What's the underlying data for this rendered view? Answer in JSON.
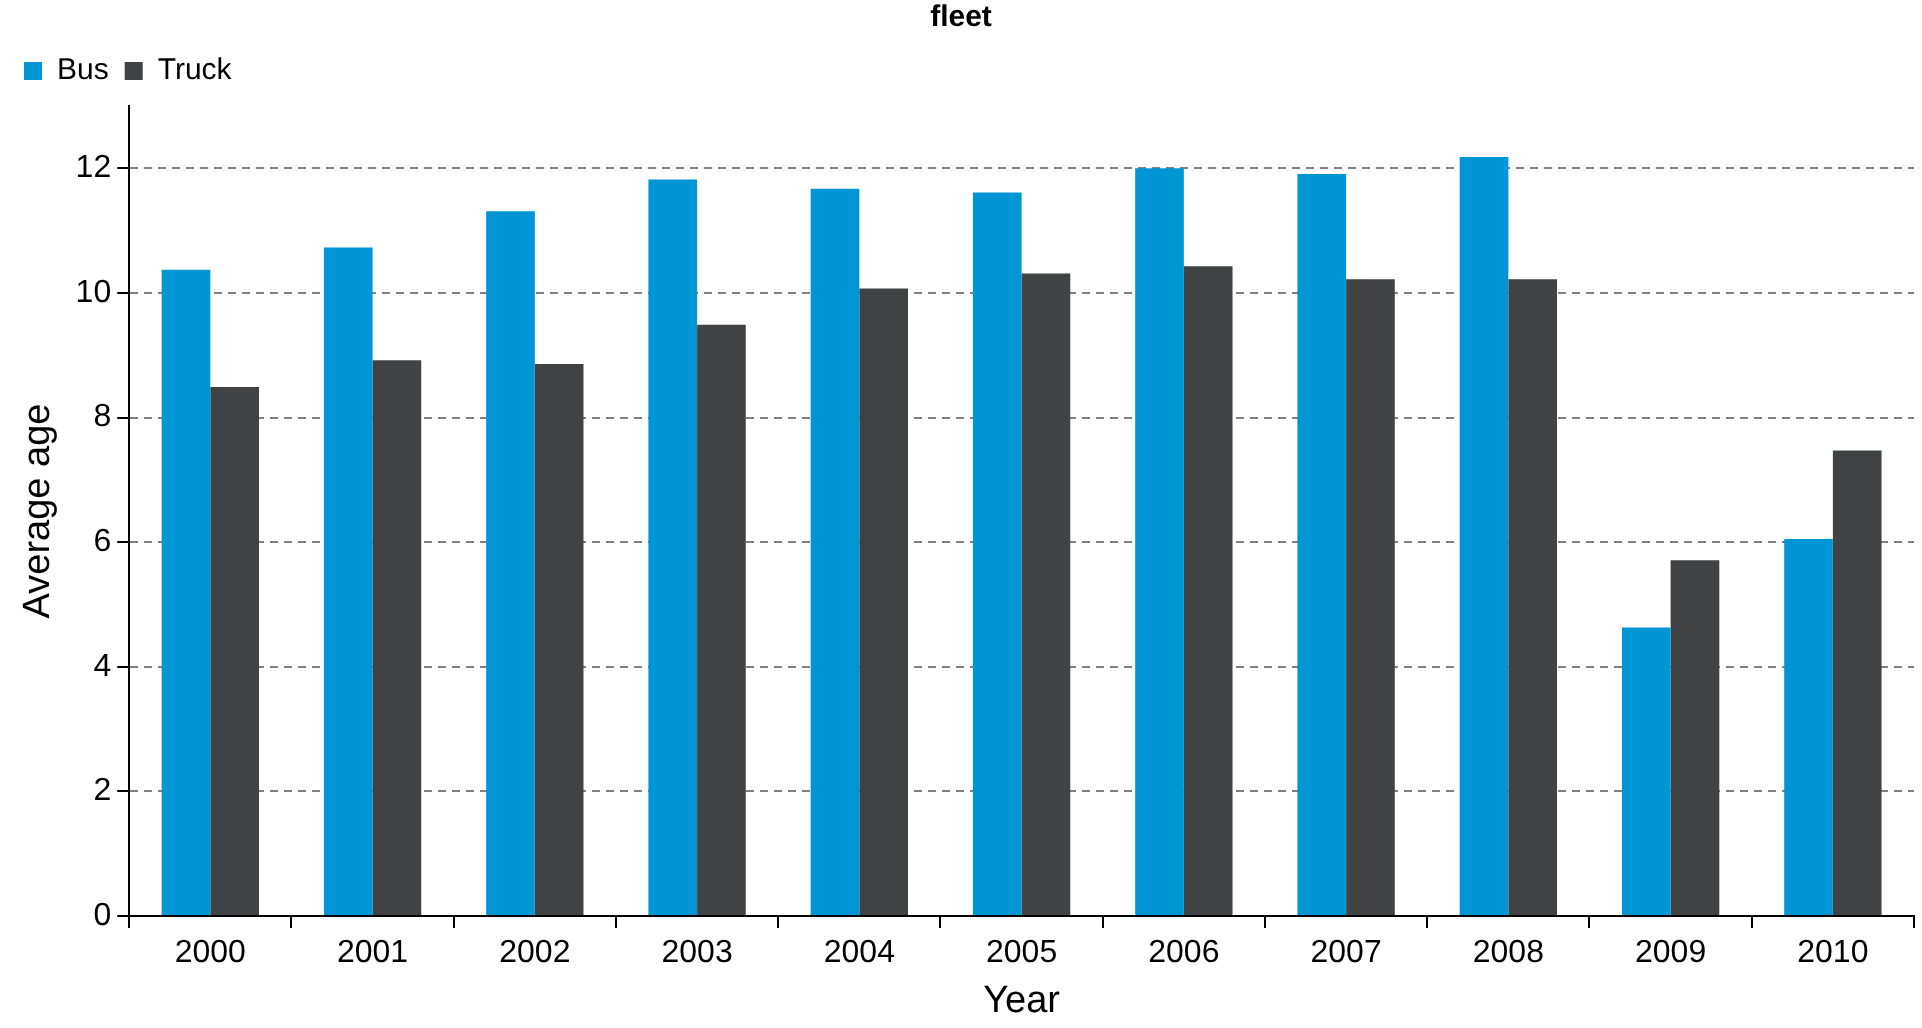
{
  "chart_data": {
    "type": "bar",
    "title": "fleet",
    "xlabel": "Year",
    "ylabel": "Average age",
    "categories": [
      "2000",
      "2001",
      "2002",
      "2003",
      "2004",
      "2005",
      "2006",
      "2007",
      "2008",
      "2009",
      "2010"
    ],
    "series": [
      {
        "name": "Bus",
        "color": "#0096d6",
        "values": [
          10.37,
          10.73,
          11.31,
          11.82,
          11.67,
          11.61,
          12.0,
          11.91,
          12.18,
          4.63,
          6.05
        ]
      },
      {
        "name": "Truck",
        "color": "#404243",
        "values": [
          8.49,
          8.92,
          8.86,
          9.49,
          10.07,
          10.31,
          10.43,
          10.22,
          10.22,
          5.71,
          7.47
        ]
      }
    ],
    "ylim": [
      0,
      13
    ],
    "yticks": [
      0,
      2,
      4,
      6,
      8,
      10,
      12
    ],
    "grid": "y",
    "legend": "top left"
  }
}
